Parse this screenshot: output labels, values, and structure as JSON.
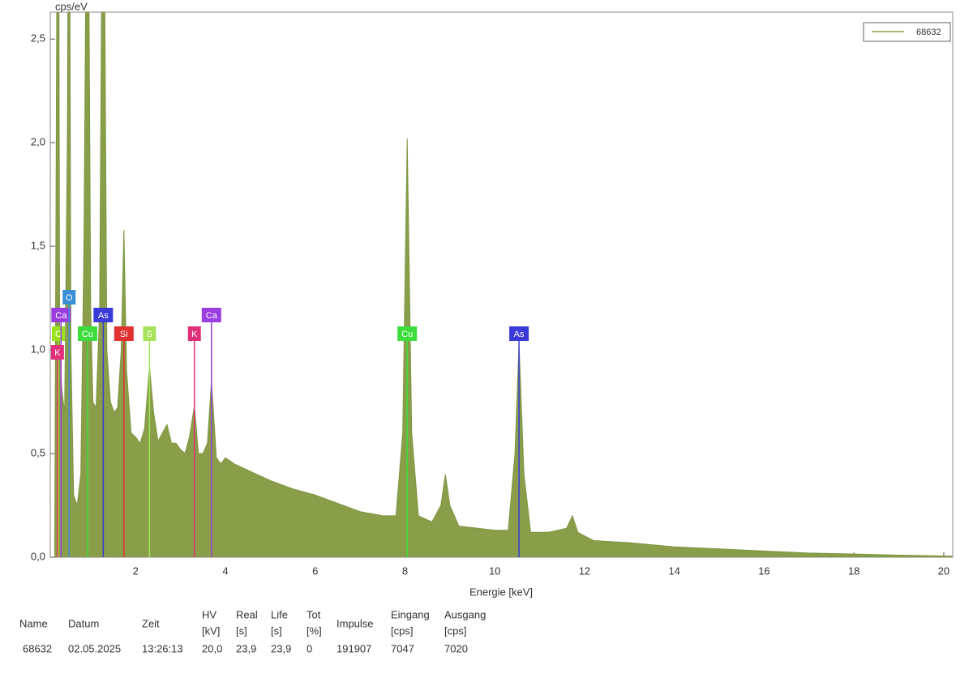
{
  "chart_data": {
    "type": "area",
    "y_label": "cps/eV",
    "x_label": "Energie [keV]",
    "xlim": [
      0.1,
      20.2
    ],
    "xticks": [
      2,
      4,
      6,
      8,
      10,
      12,
      14,
      16,
      18,
      20
    ],
    "ylim": [
      0,
      2.63
    ],
    "yticks": [
      {
        "value": 0,
        "label": "0,0"
      },
      {
        "value": 0.5,
        "label": "0,5"
      },
      {
        "value": 1,
        "label": "1,0"
      },
      {
        "value": 1.5,
        "label": "1,5"
      },
      {
        "value": 2,
        "label": "2,0"
      },
      {
        "value": 2.5,
        "label": "2,5"
      }
    ],
    "legend": "top-right",
    "x": [
      0.2,
      0.25,
      0.28,
      0.31,
      0.36,
      0.42,
      0.48,
      0.52,
      0.56,
      0.62,
      0.7,
      0.78,
      0.85,
      0.93,
      1.0,
      1.05,
      1.12,
      1.2,
      1.28,
      1.36,
      1.44,
      1.52,
      1.6,
      1.68,
      1.74,
      1.8,
      1.9,
      2.0,
      2.1,
      2.2,
      2.31,
      2.4,
      2.5,
      2.6,
      2.7,
      2.8,
      2.9,
      3.0,
      3.1,
      3.2,
      3.31,
      3.4,
      3.5,
      3.6,
      3.69,
      3.8,
      3.9,
      4.0,
      4.2,
      4.5,
      5.0,
      5.5,
      6.0,
      6.5,
      7.0,
      7.5,
      7.8,
      7.95,
      8.05,
      8.15,
      8.3,
      8.6,
      8.8,
      8.9,
      9.0,
      9.2,
      9.6,
      10.0,
      10.3,
      10.45,
      10.54,
      10.65,
      10.8,
      11.2,
      11.6,
      11.73,
      11.85,
      12.2,
      13,
      14,
      15,
      16,
      17,
      18,
      19,
      20.2
    ],
    "series": [
      {
        "name": "68632",
        "color": "#8a9e4a",
        "values": [
          0.1,
          3.0,
          4,
          1.0,
          0.8,
          0.7,
          2.0,
          4,
          1.0,
          0.3,
          0.25,
          0.4,
          1.5,
          4,
          1.2,
          0.75,
          0.72,
          1.2,
          4,
          1.0,
          0.75,
          0.7,
          0.72,
          1.0,
          1.58,
          0.9,
          0.6,
          0.58,
          0.55,
          0.62,
          0.92,
          0.7,
          0.56,
          0.6,
          0.64,
          0.55,
          0.55,
          0.52,
          0.5,
          0.58,
          0.73,
          0.5,
          0.5,
          0.55,
          0.85,
          0.48,
          0.45,
          0.48,
          0.45,
          0.42,
          0.37,
          0.33,
          0.3,
          0.26,
          0.22,
          0.2,
          0.2,
          0.6,
          2.02,
          0.6,
          0.2,
          0.17,
          0.25,
          0.4,
          0.25,
          0.15,
          0.14,
          0.13,
          0.13,
          0.5,
          1.03,
          0.4,
          0.12,
          0.12,
          0.14,
          0.2,
          0.12,
          0.08,
          0.07,
          0.05,
          0.04,
          0.03,
          0.02,
          0.015,
          0.01,
          0.005
        ]
      }
    ],
    "markers": [
      {
        "label": "C",
        "energy": 0.28,
        "color": "#9be21e"
      },
      {
        "label": "Ca",
        "energy": 0.34,
        "color": "#9a3ee0"
      },
      {
        "label": "K",
        "energy": 0.26,
        "color": "#e0307a"
      },
      {
        "label": "O",
        "energy": 0.52,
        "color": "#3b8fd6"
      },
      {
        "label": "Cu",
        "energy": 0.93,
        "color": "#3ddc3d"
      },
      {
        "label": "As",
        "energy": 1.28,
        "color": "#3a3ad8"
      },
      {
        "label": "Si",
        "energy": 1.74,
        "color": "#e03030"
      },
      {
        "label": "S",
        "energy": 2.31,
        "color": "#a6e35a"
      },
      {
        "label": "K",
        "energy": 3.31,
        "color": "#e0307a"
      },
      {
        "label": "Ca",
        "energy": 3.69,
        "color": "#9a3ee0"
      },
      {
        "label": "Cu",
        "energy": 8.05,
        "color": "#3ddc3d"
      },
      {
        "label": "As",
        "energy": 10.54,
        "color": "#3a3ad8"
      }
    ]
  },
  "table": {
    "headers": [
      [
        "Name"
      ],
      [
        "Datum"
      ],
      [
        "Zeit"
      ],
      [
        "HV",
        "[kV]"
      ],
      [
        "Real",
        "[s]"
      ],
      [
        "Life",
        "[s]"
      ],
      [
        "Tot",
        "[%]"
      ],
      [
        "Impulse"
      ],
      [
        "Eingang",
        "[cps]"
      ],
      [
        "Ausgang",
        "[cps]"
      ]
    ],
    "rows": [
      [
        "68632",
        "02.05.2025",
        "13:26:13",
        "20,0",
        "23,9",
        "23,9",
        "0",
        "191907",
        "7047",
        "7020"
      ]
    ]
  }
}
